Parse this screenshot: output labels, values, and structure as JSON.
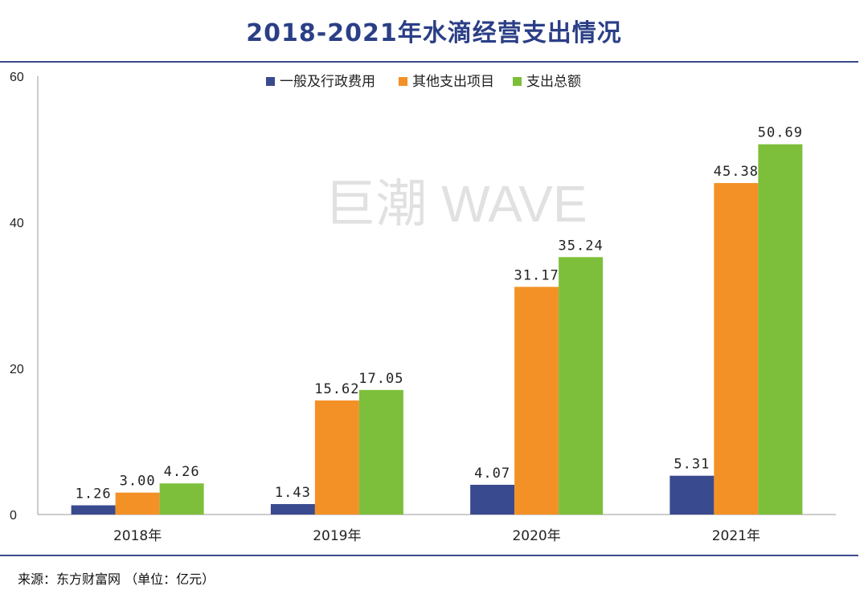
{
  "header": {
    "title": "2018-2021年水滴经营支出情况"
  },
  "watermark": "巨潮 WAVE",
  "footer": {
    "source": "来源：东方财富网",
    "unit": "（单位：亿元）"
  },
  "chart_data": {
    "type": "bar",
    "categories": [
      "2018年",
      "2019年",
      "2020年",
      "2021年"
    ],
    "series": [
      {
        "name": "一般及行政费用",
        "color": "#3a4a8e",
        "values": [
          1.26,
          1.43,
          4.07,
          5.31
        ],
        "labels": [
          "1.26",
          "1.43",
          "4.07",
          "5.31"
        ]
      },
      {
        "name": "其他支出项目",
        "color": "#f39126",
        "values": [
          3.0,
          15.62,
          31.17,
          45.38
        ],
        "labels": [
          "3.00",
          "15.62",
          "31.17",
          "45.38"
        ]
      },
      {
        "name": "支出总额",
        "color": "#7dbf3b",
        "values": [
          4.26,
          17.05,
          35.24,
          50.69
        ],
        "labels": [
          "4.26",
          "17.05",
          "35.24",
          "50.69"
        ]
      }
    ],
    "ylim": [
      0,
      60
    ],
    "yticks": [
      0,
      20,
      40,
      60
    ],
    "legend_position": "top-center",
    "grid": false
  }
}
